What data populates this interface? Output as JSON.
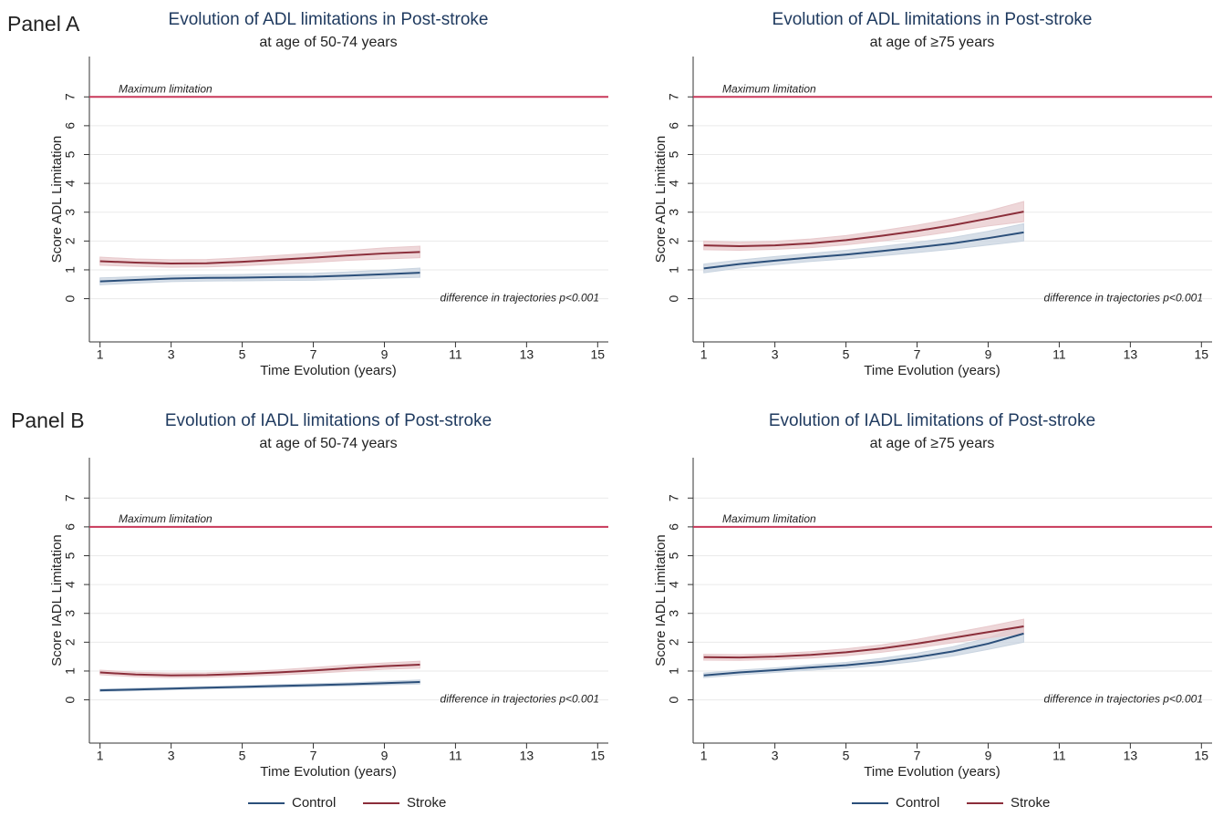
{
  "panel_labels": [
    "Panel A",
    "Panel B"
  ],
  "chart_data": [
    {
      "type": "line",
      "title": "Evolution of ADL limitations in Post-stroke",
      "subtitle": "at age of 50-74 years",
      "ylabel": "Score ADL Limitation",
      "xlabel": "Time Evolution (years)",
      "hline": 7,
      "hline_label": "Maximum limitation",
      "annotation": "difference in trajectories p<0.001",
      "hline_color": "#c8385a",
      "grid": true,
      "x": [
        1,
        2,
        3,
        4,
        5,
        6,
        7,
        8,
        9,
        10
      ],
      "xlim": [
        0.7,
        15.3
      ],
      "xticks": [
        1,
        3,
        5,
        7,
        9,
        11,
        13,
        15
      ],
      "ylim": [
        -1.5,
        8.4
      ],
      "yticks": [
        0,
        1,
        2,
        3,
        4,
        5,
        6,
        7
      ],
      "series": [
        {
          "color": "#2b4f7a",
          "band_color": "#c9d4e0",
          "values": [
            0.6,
            0.65,
            0.7,
            0.72,
            0.73,
            0.75,
            0.76,
            0.8,
            0.85,
            0.9
          ],
          "lower": [
            0.48,
            0.54,
            0.59,
            0.61,
            0.62,
            0.63,
            0.64,
            0.67,
            0.71,
            0.74
          ],
          "upper": [
            0.72,
            0.76,
            0.81,
            0.83,
            0.84,
            0.87,
            0.88,
            0.93,
            0.99,
            1.06
          ]
        },
        {
          "color": "#8b2e3a",
          "band_color": "#e8c9cc",
          "values": [
            1.3,
            1.25,
            1.22,
            1.23,
            1.28,
            1.35,
            1.42,
            1.5,
            1.57,
            1.62
          ],
          "lower": [
            1.16,
            1.12,
            1.09,
            1.1,
            1.14,
            1.2,
            1.26,
            1.33,
            1.38,
            1.42
          ],
          "upper": [
            1.44,
            1.38,
            1.35,
            1.36,
            1.42,
            1.5,
            1.58,
            1.67,
            1.76,
            1.82
          ]
        }
      ]
    },
    {
      "type": "line",
      "title": "Evolution of ADL limitations in Post-stroke",
      "subtitle": "at age of ≥75 years",
      "ylabel": "Score ADL Limitation",
      "xlabel": "Time Evolution (years)",
      "hline": 7,
      "hline_label": "Maximum limitation",
      "annotation": "difference in trajectories p<0.001",
      "hline_color": "#c8385a",
      "grid": true,
      "x": [
        1,
        2,
        3,
        4,
        5,
        6,
        7,
        8,
        9,
        10
      ],
      "xlim": [
        0.7,
        15.3
      ],
      "xticks": [
        1,
        3,
        5,
        7,
        9,
        11,
        13,
        15
      ],
      "ylim": [
        -1.5,
        8.4
      ],
      "yticks": [
        0,
        1,
        2,
        3,
        4,
        5,
        6,
        7
      ],
      "series": [
        {
          "color": "#2b4f7a",
          "band_color": "#c9d4e0",
          "values": [
            1.05,
            1.2,
            1.32,
            1.43,
            1.53,
            1.65,
            1.78,
            1.92,
            2.1,
            2.3
          ],
          "lower": [
            0.9,
            1.06,
            1.18,
            1.29,
            1.38,
            1.49,
            1.6,
            1.72,
            1.86,
            2.0
          ],
          "upper": [
            1.2,
            1.34,
            1.46,
            1.57,
            1.68,
            1.81,
            1.96,
            2.12,
            2.34,
            2.6
          ]
        },
        {
          "color": "#8b2e3a",
          "band_color": "#e8c9cc",
          "values": [
            1.85,
            1.82,
            1.85,
            1.92,
            2.03,
            2.18,
            2.35,
            2.55,
            2.78,
            3.02
          ],
          "lower": [
            1.7,
            1.68,
            1.71,
            1.77,
            1.87,
            2.0,
            2.15,
            2.33,
            2.52,
            2.67
          ],
          "upper": [
            2.0,
            1.96,
            1.99,
            2.07,
            2.19,
            2.36,
            2.55,
            2.77,
            3.04,
            3.37
          ]
        }
      ]
    },
    {
      "type": "line",
      "title": "Evolution of IADL limitations of Post-stroke",
      "subtitle": "at age of 50-74 years",
      "ylabel": "Score IADL Limitation",
      "xlabel": "Time Evolution (years)",
      "hline": 6,
      "hline_label": "Maximum limitation",
      "annotation": "difference in trajectories p<0.001",
      "hline_color": "#c8385a",
      "grid": true,
      "legend": "bottom",
      "x": [
        1,
        2,
        3,
        4,
        5,
        6,
        7,
        8,
        9,
        10
      ],
      "xlim": [
        0.7,
        15.3
      ],
      "xticks": [
        1,
        3,
        5,
        7,
        9,
        11,
        13,
        15
      ],
      "ylim": [
        -1.5,
        8.4
      ],
      "yticks": [
        0,
        1,
        2,
        3,
        4,
        5,
        6,
        7
      ],
      "series": [
        {
          "name": "Control",
          "color": "#2b4f7a",
          "band_color": "#c9d4e0",
          "values": [
            0.33,
            0.36,
            0.39,
            0.42,
            0.45,
            0.48,
            0.51,
            0.54,
            0.58,
            0.62
          ],
          "lower": [
            0.29,
            0.32,
            0.35,
            0.38,
            0.41,
            0.43,
            0.46,
            0.49,
            0.52,
            0.55
          ],
          "upper": [
            0.37,
            0.4,
            0.43,
            0.46,
            0.49,
            0.53,
            0.56,
            0.59,
            0.64,
            0.69
          ]
        },
        {
          "name": "Stroke",
          "color": "#8b2e3a",
          "band_color": "#e8c9cc",
          "values": [
            0.95,
            0.88,
            0.85,
            0.86,
            0.9,
            0.95,
            1.02,
            1.1,
            1.17,
            1.22
          ],
          "lower": [
            0.87,
            0.8,
            0.77,
            0.78,
            0.82,
            0.86,
            0.92,
            0.99,
            1.06,
            1.1
          ],
          "upper": [
            1.03,
            0.96,
            0.93,
            0.94,
            0.98,
            1.04,
            1.12,
            1.21,
            1.28,
            1.34
          ]
        }
      ]
    },
    {
      "type": "line",
      "title": "Evolution of IADL limitations of Post-stroke",
      "subtitle": "at age of ≥75 years",
      "ylabel": "Score IADL Limitation",
      "xlabel": "Time Evolution (years)",
      "hline": 6,
      "hline_label": "Maximum limitation",
      "annotation": "difference in trajectories p<0.001",
      "hline_color": "#c8385a",
      "grid": true,
      "legend": "bottom",
      "x": [
        1,
        2,
        3,
        4,
        5,
        6,
        7,
        8,
        9,
        10
      ],
      "xlim": [
        0.7,
        15.3
      ],
      "xticks": [
        1,
        3,
        5,
        7,
        9,
        11,
        13,
        15
      ],
      "ylim": [
        -1.5,
        8.4
      ],
      "yticks": [
        0,
        1,
        2,
        3,
        4,
        5,
        6,
        7
      ],
      "series": [
        {
          "name": "Control",
          "color": "#2b4f7a",
          "band_color": "#c9d4e0",
          "values": [
            0.85,
            0.95,
            1.03,
            1.12,
            1.2,
            1.32,
            1.48,
            1.68,
            1.95,
            2.3
          ],
          "lower": [
            0.77,
            0.87,
            0.95,
            1.03,
            1.1,
            1.2,
            1.34,
            1.52,
            1.75,
            2.0
          ],
          "upper": [
            0.93,
            1.03,
            1.11,
            1.21,
            1.3,
            1.44,
            1.62,
            1.84,
            2.15,
            2.6
          ]
        },
        {
          "name": "Stroke",
          "color": "#8b2e3a",
          "band_color": "#e8c9cc",
          "values": [
            1.48,
            1.47,
            1.5,
            1.56,
            1.65,
            1.78,
            1.95,
            2.15,
            2.35,
            2.55
          ],
          "lower": [
            1.38,
            1.37,
            1.4,
            1.45,
            1.53,
            1.65,
            1.8,
            1.98,
            2.15,
            2.3
          ],
          "upper": [
            1.58,
            1.57,
            1.6,
            1.67,
            1.77,
            1.91,
            2.1,
            2.32,
            2.55,
            2.8
          ]
        }
      ]
    }
  ]
}
